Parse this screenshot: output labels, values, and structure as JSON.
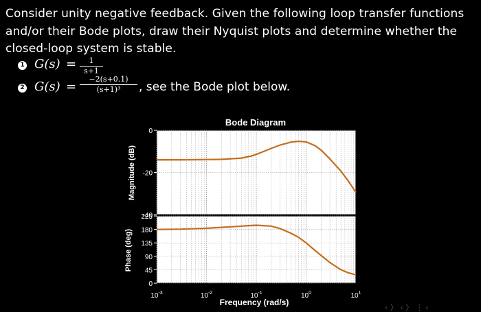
{
  "text": {
    "line1": "Consider unity negative feedback. Given the following loop transfer functions",
    "line2": "and/or their Bode plots, draw their Nyquist plots and determine whether the",
    "line3": "closed-loop system is stable."
  },
  "items": [
    {
      "bullet": "1",
      "label": "G(s)",
      "equals": "=",
      "numerator": "1",
      "denominator": "s+1",
      "suffix": ""
    },
    {
      "bullet": "2",
      "label": "G(s)",
      "equals": "=",
      "numerator": "−2(s+0.1)",
      "denominator": "(s+1)³",
      "suffix": ", see the Bode plot below."
    }
  ],
  "footer_marks": "‹ 〉 ‹ 〉 ⋮ ‹",
  "chart_data": {
    "type": "line",
    "title": "Bode Diagram",
    "xlabel": "Frequency (rad/s)",
    "x_scale": "log",
    "xlim": [
      0.001,
      10
    ],
    "x_ticks": [
      {
        "value": 0.001,
        "base": "10",
        "exp": "-3"
      },
      {
        "value": 0.01,
        "base": "10",
        "exp": "-2"
      },
      {
        "value": 0.1,
        "base": "10",
        "exp": "-1"
      },
      {
        "value": 1,
        "base": "10",
        "exp": "0"
      },
      {
        "value": 10,
        "base": "10",
        "exp": "1"
      }
    ],
    "grid": true,
    "colors": {
      "background": "#ffffff",
      "curve": "#c36e1c",
      "grid": "#9a9a9a",
      "axes": "#000000",
      "text": "#ffffff"
    },
    "panels": [
      {
        "name": "magnitude",
        "ylabel": "Magnitude (dB)",
        "ylim": [
          -40,
          0
        ],
        "y_ticks": [
          0,
          -20,
          -40
        ],
        "series": [
          {
            "x": [
              0.001,
              0.003,
              0.01,
              0.02,
              0.05,
              0.08,
              0.1,
              0.2,
              0.3,
              0.5,
              0.7,
              1,
              1.5,
              2,
              3,
              5,
              7,
              10
            ],
            "y": [
              -14,
              -14,
              -13.9,
              -13.8,
              -13.2,
              -12.2,
              -11.4,
              -8.6,
              -7.0,
              -5.6,
              -5.2,
              -5.5,
              -7.3,
              -9.4,
              -13.6,
              -19.4,
              -24.0,
              -29.5
            ]
          }
        ]
      },
      {
        "name": "phase",
        "ylabel": "Phase (deg)",
        "ylim": [
          0,
          225
        ],
        "y_ticks": [
          0,
          45,
          90,
          135,
          180,
          225
        ],
        "series": [
          {
            "x": [
              0.001,
              0.003,
              0.01,
              0.02,
              0.05,
              0.08,
              0.1,
              0.2,
              0.3,
              0.5,
              0.7,
              1,
              1.5,
              2,
              3,
              5,
              7,
              10
            ],
            "y": [
              180,
              181,
              184,
              187,
              191,
              193,
              194,
              191,
              183,
              167,
              154,
              135,
              110,
              93,
              69,
              45,
              35,
              28
            ]
          }
        ]
      }
    ]
  }
}
